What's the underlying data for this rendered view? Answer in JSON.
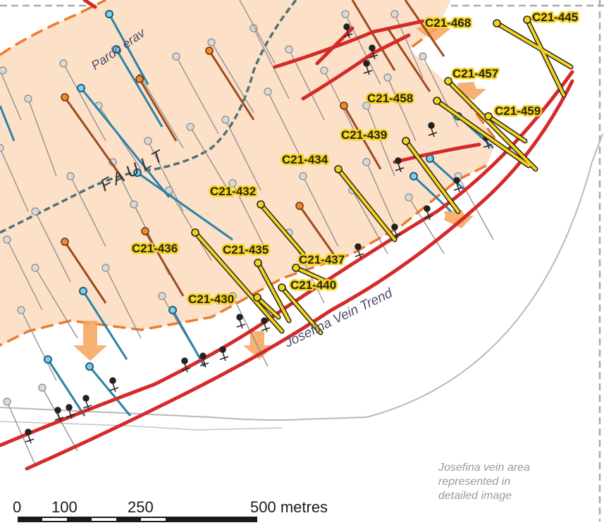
{
  "labels": {
    "fault": "FAULT",
    "pardo_lavo": "Pardo erav",
    "vein_trend": "Josefina Vein Trend"
  },
  "drill_holes": [
    "C21-445",
    "C21-468",
    "C21-457",
    "C21-458",
    "C21-459",
    "C21-439",
    "C21-434",
    "C21-432",
    "C21-436",
    "C21-435",
    "C21-437",
    "C21-440",
    "C21-430"
  ],
  "note": [
    "Josefina vein area",
    "represented in",
    "detailed image"
  ],
  "scale_bar": {
    "ticks": [
      "0",
      "100",
      "250",
      "500 metres"
    ]
  },
  "colors": {
    "zone_fill": "#fde0c8",
    "zone_outline": "#ee7a2c",
    "vein": "#d42a2a",
    "hole_highlight": "#f5d31a",
    "hole_blue": "#2b82a8",
    "hole_brown": "#9c4a1c",
    "hole_grey": "#999999",
    "fault_line": "#4e7272",
    "arrow": "#f5a35a"
  }
}
